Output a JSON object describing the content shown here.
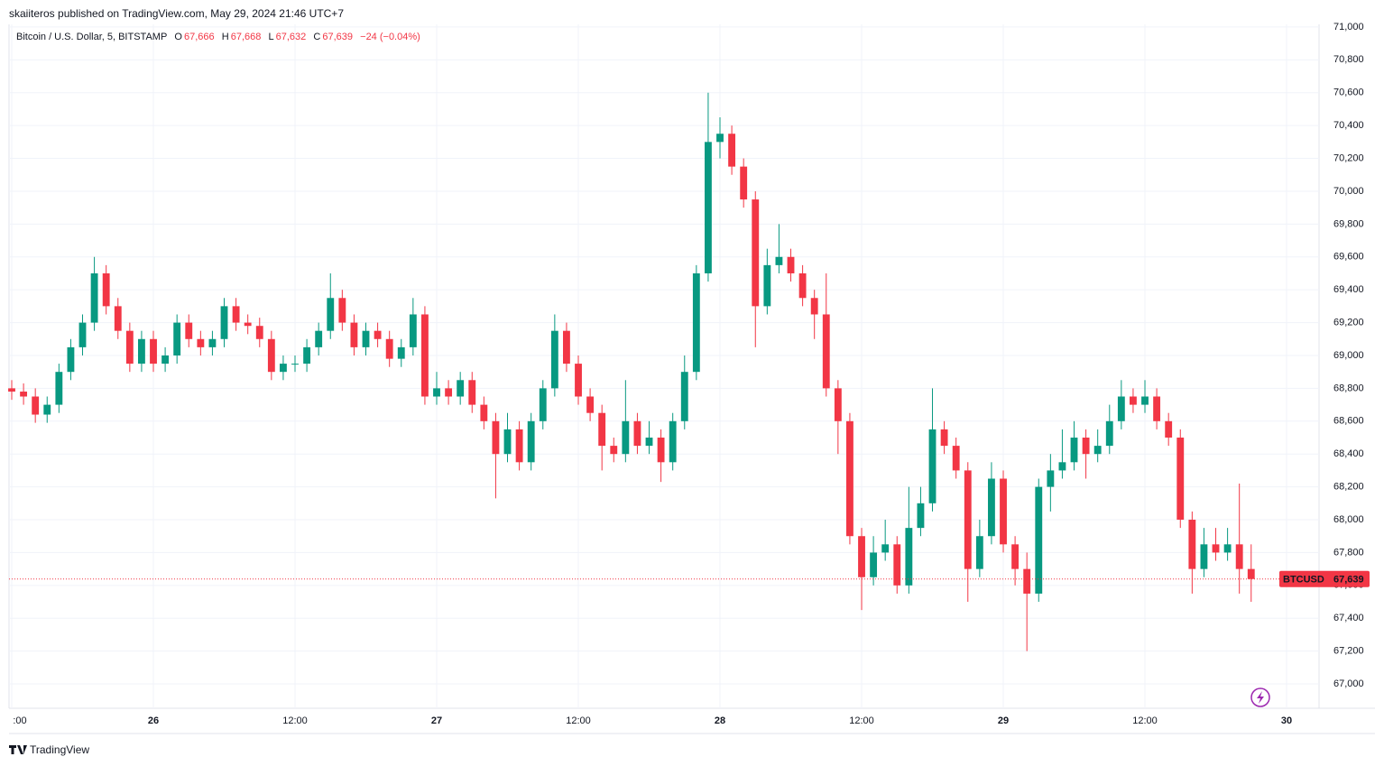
{
  "header": {
    "publisher": "skaiiteros published on TradingView.com, May 29, 2024 21:46 UTC+7"
  },
  "legend": {
    "symbol": "Bitcoin / U.S. Dollar, 5, BITSTAMP",
    "open_label": "O",
    "open": "67,666",
    "high_label": "H",
    "high": "67,668",
    "low_label": "L",
    "low": "67,632",
    "close_label": "C",
    "close": "67,639",
    "change": "−24 (−0.04%)"
  },
  "footer": {
    "brand": "TradingView"
  },
  "chart_data": {
    "type": "candlestick",
    "up_color": "#089981",
    "down_color": "#f23645",
    "grid": true,
    "x": [
      -12,
      -11,
      -10,
      -9,
      -8,
      -7,
      -6,
      -5,
      -4,
      -3,
      -2,
      -1,
      0,
      1,
      2,
      3,
      4,
      5,
      6,
      7,
      8,
      9,
      10,
      11,
      12,
      13,
      14,
      15,
      16,
      17,
      18,
      19,
      20,
      21,
      22,
      23,
      24,
      25,
      26,
      27,
      28,
      29,
      30,
      31,
      32,
      33,
      34,
      35,
      36,
      37,
      38,
      39,
      40,
      41,
      42,
      43,
      44,
      45,
      46,
      47,
      48,
      49,
      50,
      51,
      52,
      53,
      54,
      55,
      56,
      57,
      58,
      59,
      60,
      61,
      62,
      63,
      64,
      65,
      66,
      67,
      68,
      69,
      70,
      71,
      72,
      73,
      74,
      75,
      76,
      77,
      78,
      79,
      80,
      81,
      82,
      83,
      84,
      85,
      86,
      87,
      88,
      89,
      90,
      91,
      92,
      93
    ],
    "open": [
      68800,
      68780,
      68750,
      68640,
      68700,
      68900,
      69050,
      69200,
      69500,
      69300,
      69150,
      68950,
      69100,
      68950,
      69000,
      69200,
      69100,
      69050,
      69100,
      69300,
      69200,
      69180,
      69100,
      68900,
      68950,
      68950,
      69050,
      69150,
      69350,
      69200,
      69050,
      69150,
      69100,
      68980,
      69050,
      69250,
      68750,
      68800,
      68750,
      68850,
      68700,
      68600,
      68400,
      68550,
      68350,
      68600,
      68800,
      69150,
      68950,
      68750,
      68650,
      68450,
      68400,
      68600,
      68450,
      68500,
      68350,
      68600,
      68900,
      69500,
      70300,
      70350,
      70150,
      69950,
      69300,
      69550,
      69600,
      69500,
      69350,
      69250,
      68800,
      68600,
      67900,
      67650,
      67800,
      67850,
      67600,
      67950,
      68100,
      68550,
      68450,
      68300,
      67700,
      67900,
      68250,
      67850,
      67700,
      67550,
      68200,
      68300,
      68350,
      68500,
      68400,
      68450,
      68600,
      68750,
      68700,
      68750,
      68600,
      68500,
      68000,
      67700,
      67850,
      67800,
      67850,
      67700
    ],
    "high": [
      68850,
      68830,
      68800,
      68750,
      68950,
      69100,
      69250,
      69600,
      69550,
      69350,
      69200,
      69150,
      69150,
      69050,
      69250,
      69250,
      69150,
      69150,
      69350,
      69350,
      69250,
      69230,
      69150,
      69000,
      69000,
      69100,
      69200,
      69500,
      69400,
      69250,
      69200,
      69200,
      69150,
      69100,
      69350,
      69300,
      68900,
      68850,
      68900,
      68900,
      68750,
      68650,
      68650,
      68600,
      68650,
      68850,
      69250,
      69200,
      69000,
      68800,
      68700,
      68500,
      68850,
      68650,
      68600,
      68550,
      68650,
      69000,
      69550,
      70600,
      70450,
      70400,
      70200,
      70000,
      69650,
      69800,
      69650,
      69550,
      69400,
      69500,
      68850,
      68650,
      67950,
      67900,
      68000,
      67900,
      68200,
      68200,
      68800,
      68600,
      68500,
      68350,
      68000,
      68350,
      68300,
      67900,
      67800,
      68250,
      68400,
      68550,
      68600,
      68550,
      68550,
      68700,
      68850,
      68800,
      68850,
      68800,
      68650,
      68550,
      68050,
      67950,
      67950,
      67950,
      68220,
      67850
    ],
    "low": [
      68730,
      68700,
      68590,
      68590,
      68650,
      68850,
      69000,
      69150,
      69250,
      69100,
      68900,
      68900,
      68900,
      68900,
      68950,
      69050,
      69000,
      69000,
      69050,
      69150,
      69130,
      69050,
      68850,
      68850,
      68900,
      68900,
      69000,
      69100,
      69150,
      69000,
      69000,
      69050,
      68930,
      68930,
      69000,
      68700,
      68700,
      68700,
      68700,
      68650,
      68550,
      68130,
      68350,
      68300,
      68300,
      68550,
      68750,
      68900,
      68700,
      68600,
      68300,
      68350,
      68350,
      68400,
      68400,
      68230,
      68300,
      68550,
      68850,
      69450,
      70200,
      70100,
      69900,
      69050,
      69250,
      69500,
      69450,
      69300,
      69100,
      68750,
      68400,
      67850,
      67450,
      67600,
      67750,
      67550,
      67550,
      67900,
      68050,
      68400,
      68250,
      67500,
      67650,
      67850,
      67800,
      67600,
      67200,
      67500,
      68050,
      68250,
      68300,
      68250,
      68350,
      68400,
      68550,
      68650,
      68650,
      68550,
      68450,
      67950,
      67550,
      67650,
      67750,
      67750,
      67550,
      67500
    ],
    "close": [
      68780,
      68750,
      68640,
      68700,
      68900,
      69050,
      69200,
      69500,
      69300,
      69150,
      68950,
      69100,
      68950,
      69000,
      69200,
      69100,
      69050,
      69100,
      69300,
      69200,
      69180,
      69100,
      68900,
      68950,
      68950,
      69050,
      69150,
      69350,
      69200,
      69050,
      69150,
      69100,
      68980,
      69050,
      69250,
      68750,
      68800,
      68750,
      68850,
      68700,
      68600,
      68400,
      68550,
      68350,
      68600,
      68800,
      69150,
      68950,
      68750,
      68650,
      68450,
      68400,
      68600,
      68450,
      68500,
      68350,
      68600,
      68900,
      69500,
      70300,
      70350,
      70150,
      69950,
      69300,
      69550,
      69600,
      69500,
      69350,
      69250,
      68800,
      68600,
      67900,
      67650,
      67800,
      67850,
      67600,
      67950,
      68100,
      68550,
      68450,
      68300,
      67700,
      67900,
      68250,
      67850,
      67700,
      67550,
      68200,
      68300,
      68350,
      68500,
      68400,
      68450,
      68600,
      68750,
      68700,
      68750,
      68600,
      68500,
      68000,
      67700,
      67850,
      67800,
      67850,
      67700,
      67639
    ],
    "xlim": [
      -12.23,
      98.75
    ],
    "ylim": [
      66852,
      71016
    ],
    "xticks": [
      {
        "value": -12,
        "label": ":00"
      },
      {
        "value": 0,
        "label": "26"
      },
      {
        "value": 12,
        "label": "12:00"
      },
      {
        "value": 24,
        "label": "27"
      },
      {
        "value": 36,
        "label": "12:00"
      },
      {
        "value": 48,
        "label": "28"
      },
      {
        "value": 60,
        "label": "12:00"
      },
      {
        "value": 72,
        "label": "29"
      },
      {
        "value": 84,
        "label": "12:00"
      },
      {
        "value": 96,
        "label": "30"
      }
    ],
    "yticks": [
      {
        "value": 67000,
        "label": "67,000"
      },
      {
        "value": 67200,
        "label": "67,200"
      },
      {
        "value": 67400,
        "label": "67,400"
      },
      {
        "value": 67600,
        "label": "67,600"
      },
      {
        "value": 67800,
        "label": "67,800"
      },
      {
        "value": 68000,
        "label": "68,000"
      },
      {
        "value": 68200,
        "label": "68,200"
      },
      {
        "value": 68400,
        "label": "68,400"
      },
      {
        "value": 68600,
        "label": "68,600"
      },
      {
        "value": 68800,
        "label": "68,800"
      },
      {
        "value": 69000,
        "label": "69,000"
      },
      {
        "value": 69200,
        "label": "69,200"
      },
      {
        "value": 69400,
        "label": "69,400"
      },
      {
        "value": 69600,
        "label": "69,600"
      },
      {
        "value": 69800,
        "label": "69,800"
      },
      {
        "value": 70000,
        "label": "70,000"
      },
      {
        "value": 70200,
        "label": "70,200"
      },
      {
        "value": 70400,
        "label": "70,400"
      },
      {
        "value": 70600,
        "label": "70,600"
      },
      {
        "value": 70800,
        "label": "70,800"
      },
      {
        "value": 71000,
        "label": "71,000"
      }
    ],
    "last_price": {
      "name": "BTCUSD",
      "value": 67639,
      "label": "67,639",
      "color": "#f23645"
    }
  }
}
